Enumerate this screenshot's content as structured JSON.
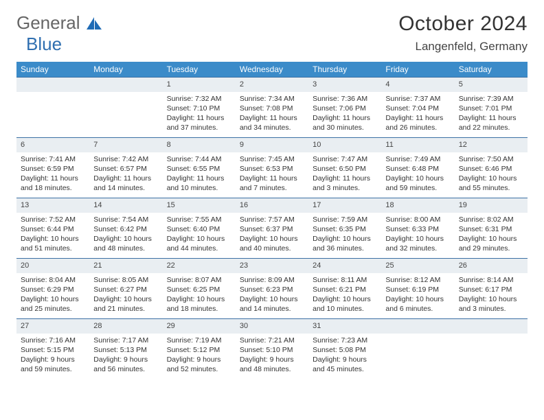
{
  "logo": {
    "text1": "General",
    "text2": "Blue"
  },
  "title": "October 2024",
  "location": "Langenfeld, Germany",
  "colors": {
    "header_bg": "#3b8bc9",
    "header_text": "#ffffff",
    "daynum_bg": "#e9eef2",
    "daynum_border": "#3b6fa3",
    "body_text": "#333333",
    "page_bg": "#ffffff"
  },
  "weekdays": [
    "Sunday",
    "Monday",
    "Tuesday",
    "Wednesday",
    "Thursday",
    "Friday",
    "Saturday"
  ],
  "weeks": [
    [
      {
        "n": "",
        "sunrise": "",
        "sunset": "",
        "daylight": ""
      },
      {
        "n": "",
        "sunrise": "",
        "sunset": "",
        "daylight": ""
      },
      {
        "n": "1",
        "sunrise": "Sunrise: 7:32 AM",
        "sunset": "Sunset: 7:10 PM",
        "daylight": "Daylight: 11 hours and 37 minutes."
      },
      {
        "n": "2",
        "sunrise": "Sunrise: 7:34 AM",
        "sunset": "Sunset: 7:08 PM",
        "daylight": "Daylight: 11 hours and 34 minutes."
      },
      {
        "n": "3",
        "sunrise": "Sunrise: 7:36 AM",
        "sunset": "Sunset: 7:06 PM",
        "daylight": "Daylight: 11 hours and 30 minutes."
      },
      {
        "n": "4",
        "sunrise": "Sunrise: 7:37 AM",
        "sunset": "Sunset: 7:04 PM",
        "daylight": "Daylight: 11 hours and 26 minutes."
      },
      {
        "n": "5",
        "sunrise": "Sunrise: 7:39 AM",
        "sunset": "Sunset: 7:01 PM",
        "daylight": "Daylight: 11 hours and 22 minutes."
      }
    ],
    [
      {
        "n": "6",
        "sunrise": "Sunrise: 7:41 AM",
        "sunset": "Sunset: 6:59 PM",
        "daylight": "Daylight: 11 hours and 18 minutes."
      },
      {
        "n": "7",
        "sunrise": "Sunrise: 7:42 AM",
        "sunset": "Sunset: 6:57 PM",
        "daylight": "Daylight: 11 hours and 14 minutes."
      },
      {
        "n": "8",
        "sunrise": "Sunrise: 7:44 AM",
        "sunset": "Sunset: 6:55 PM",
        "daylight": "Daylight: 11 hours and 10 minutes."
      },
      {
        "n": "9",
        "sunrise": "Sunrise: 7:45 AM",
        "sunset": "Sunset: 6:53 PM",
        "daylight": "Daylight: 11 hours and 7 minutes."
      },
      {
        "n": "10",
        "sunrise": "Sunrise: 7:47 AM",
        "sunset": "Sunset: 6:50 PM",
        "daylight": "Daylight: 11 hours and 3 minutes."
      },
      {
        "n": "11",
        "sunrise": "Sunrise: 7:49 AM",
        "sunset": "Sunset: 6:48 PM",
        "daylight": "Daylight: 10 hours and 59 minutes."
      },
      {
        "n": "12",
        "sunrise": "Sunrise: 7:50 AM",
        "sunset": "Sunset: 6:46 PM",
        "daylight": "Daylight: 10 hours and 55 minutes."
      }
    ],
    [
      {
        "n": "13",
        "sunrise": "Sunrise: 7:52 AM",
        "sunset": "Sunset: 6:44 PM",
        "daylight": "Daylight: 10 hours and 51 minutes."
      },
      {
        "n": "14",
        "sunrise": "Sunrise: 7:54 AM",
        "sunset": "Sunset: 6:42 PM",
        "daylight": "Daylight: 10 hours and 48 minutes."
      },
      {
        "n": "15",
        "sunrise": "Sunrise: 7:55 AM",
        "sunset": "Sunset: 6:40 PM",
        "daylight": "Daylight: 10 hours and 44 minutes."
      },
      {
        "n": "16",
        "sunrise": "Sunrise: 7:57 AM",
        "sunset": "Sunset: 6:37 PM",
        "daylight": "Daylight: 10 hours and 40 minutes."
      },
      {
        "n": "17",
        "sunrise": "Sunrise: 7:59 AM",
        "sunset": "Sunset: 6:35 PM",
        "daylight": "Daylight: 10 hours and 36 minutes."
      },
      {
        "n": "18",
        "sunrise": "Sunrise: 8:00 AM",
        "sunset": "Sunset: 6:33 PM",
        "daylight": "Daylight: 10 hours and 32 minutes."
      },
      {
        "n": "19",
        "sunrise": "Sunrise: 8:02 AM",
        "sunset": "Sunset: 6:31 PM",
        "daylight": "Daylight: 10 hours and 29 minutes."
      }
    ],
    [
      {
        "n": "20",
        "sunrise": "Sunrise: 8:04 AM",
        "sunset": "Sunset: 6:29 PM",
        "daylight": "Daylight: 10 hours and 25 minutes."
      },
      {
        "n": "21",
        "sunrise": "Sunrise: 8:05 AM",
        "sunset": "Sunset: 6:27 PM",
        "daylight": "Daylight: 10 hours and 21 minutes."
      },
      {
        "n": "22",
        "sunrise": "Sunrise: 8:07 AM",
        "sunset": "Sunset: 6:25 PM",
        "daylight": "Daylight: 10 hours and 18 minutes."
      },
      {
        "n": "23",
        "sunrise": "Sunrise: 8:09 AM",
        "sunset": "Sunset: 6:23 PM",
        "daylight": "Daylight: 10 hours and 14 minutes."
      },
      {
        "n": "24",
        "sunrise": "Sunrise: 8:11 AM",
        "sunset": "Sunset: 6:21 PM",
        "daylight": "Daylight: 10 hours and 10 minutes."
      },
      {
        "n": "25",
        "sunrise": "Sunrise: 8:12 AM",
        "sunset": "Sunset: 6:19 PM",
        "daylight": "Daylight: 10 hours and 6 minutes."
      },
      {
        "n": "26",
        "sunrise": "Sunrise: 8:14 AM",
        "sunset": "Sunset: 6:17 PM",
        "daylight": "Daylight: 10 hours and 3 minutes."
      }
    ],
    [
      {
        "n": "27",
        "sunrise": "Sunrise: 7:16 AM",
        "sunset": "Sunset: 5:15 PM",
        "daylight": "Daylight: 9 hours and 59 minutes."
      },
      {
        "n": "28",
        "sunrise": "Sunrise: 7:17 AM",
        "sunset": "Sunset: 5:13 PM",
        "daylight": "Daylight: 9 hours and 56 minutes."
      },
      {
        "n": "29",
        "sunrise": "Sunrise: 7:19 AM",
        "sunset": "Sunset: 5:12 PM",
        "daylight": "Daylight: 9 hours and 52 minutes."
      },
      {
        "n": "30",
        "sunrise": "Sunrise: 7:21 AM",
        "sunset": "Sunset: 5:10 PM",
        "daylight": "Daylight: 9 hours and 48 minutes."
      },
      {
        "n": "31",
        "sunrise": "Sunrise: 7:23 AM",
        "sunset": "Sunset: 5:08 PM",
        "daylight": "Daylight: 9 hours and 45 minutes."
      },
      {
        "n": "",
        "sunrise": "",
        "sunset": "",
        "daylight": ""
      },
      {
        "n": "",
        "sunrise": "",
        "sunset": "",
        "daylight": ""
      }
    ]
  ]
}
